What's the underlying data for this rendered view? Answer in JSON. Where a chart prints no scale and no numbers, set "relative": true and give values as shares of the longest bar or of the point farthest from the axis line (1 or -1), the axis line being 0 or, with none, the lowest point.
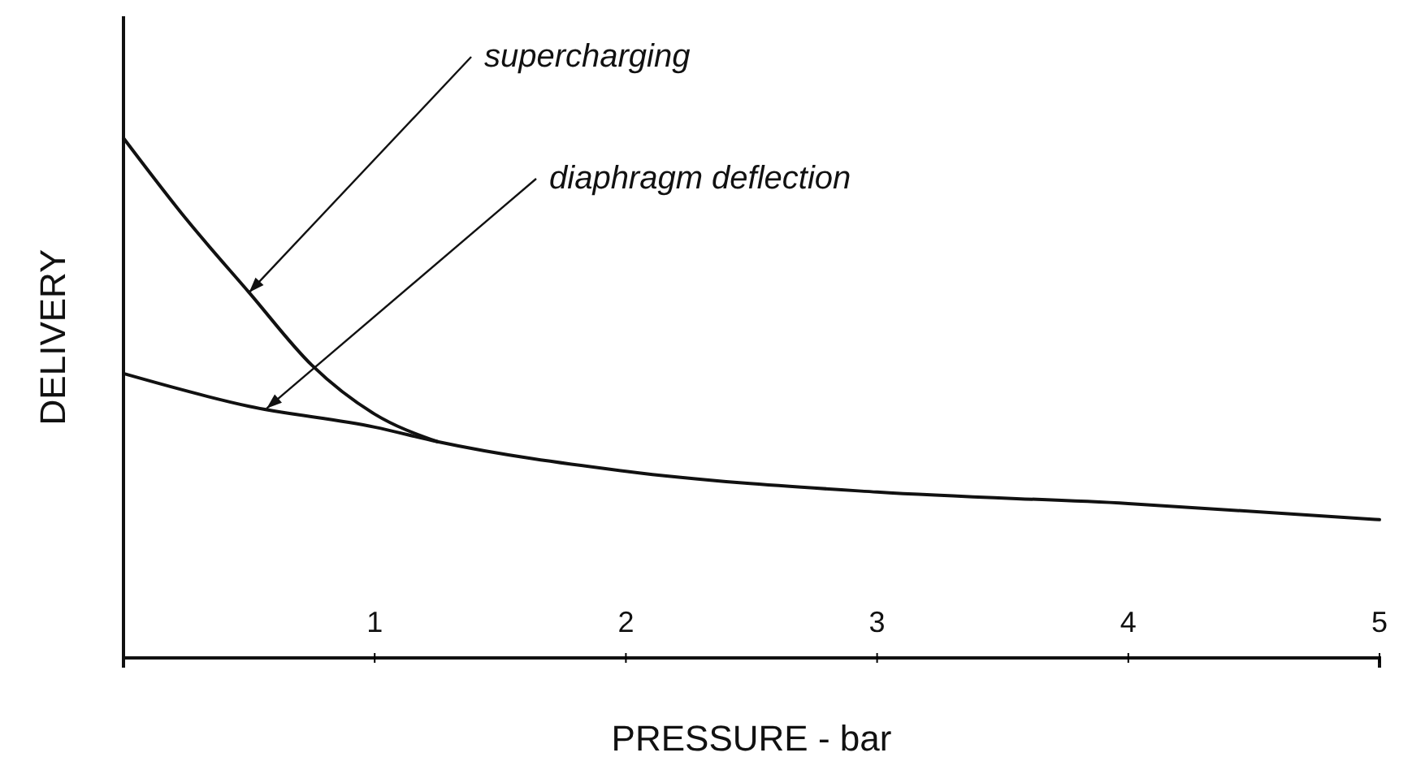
{
  "chart_data": {
    "type": "line",
    "relative": true,
    "xlabel": "PRESSURE - bar",
    "ylabel": "DELIVERY",
    "xlim": [
      0,
      5
    ],
    "xticks": [
      1,
      2,
      3,
      4,
      5
    ],
    "marker": "none",
    "line_style": "solid",
    "series": [
      {
        "color": "#111111",
        "x": [
          0,
          0.25,
          0.5,
          0.75,
          1,
          1.25
        ],
        "values": [
          1,
          0.844,
          0.703,
          0.563,
          0.469,
          0.416
        ]
      },
      {
        "color": "#111111",
        "x": [
          0,
          0.5,
          1,
          1.25,
          2,
          3,
          4,
          5
        ],
        "values": [
          0.547,
          0.484,
          0.444,
          0.416,
          0.359,
          0.319,
          0.297,
          0.266
        ]
      }
    ],
    "annotations": [
      {
        "text": "supercharging",
        "x": 0.5,
        "y": 0.703
      },
      {
        "text": "diaphragm deflection",
        "x": 0.57,
        "y": 0.48
      }
    ]
  }
}
